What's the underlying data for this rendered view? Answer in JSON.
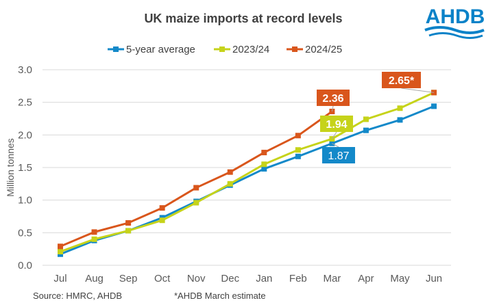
{
  "logo": {
    "text": "AHDB",
    "color": "#0a82c8"
  },
  "chart_data": {
    "type": "line",
    "title": "UK maize imports at record levels",
    "xlabel": "",
    "ylabel": "Million tonnes",
    "categories": [
      "Jul",
      "Aug",
      "Sep",
      "Oct",
      "Nov",
      "Dec",
      "Jan",
      "Feb",
      "Mar",
      "Apr",
      "May",
      "Jun"
    ],
    "ylim": [
      0,
      3.0
    ],
    "yticks": [
      "0.0",
      "0.5",
      "1.0",
      "1.5",
      "2.0",
      "2.5",
      "3.0"
    ],
    "grid": true,
    "legend_position": "top",
    "series": [
      {
        "name": "5-year average",
        "color": "#1389c9",
        "values": [
          0.17,
          0.38,
          0.53,
          0.73,
          0.98,
          1.23,
          1.48,
          1.67,
          1.87,
          2.07,
          2.23,
          2.44
        ],
        "labels": [
          {
            "index": 8,
            "text": "1.87"
          }
        ]
      },
      {
        "name": "2023/24",
        "color": "#c6d31a",
        "values": [
          0.21,
          0.4,
          0.53,
          0.69,
          0.96,
          1.25,
          1.55,
          1.77,
          1.94,
          2.24,
          2.41,
          2.65
        ],
        "labels": [
          {
            "index": 8,
            "text": "1.94"
          }
        ]
      },
      {
        "name": "2024/25",
        "color": "#d9561c",
        "values": [
          0.29,
          0.51,
          0.65,
          0.88,
          1.19,
          1.43,
          1.73,
          1.99,
          2.36,
          null,
          null,
          2.65
        ],
        "labels": [
          {
            "index": 8,
            "text": "2.36"
          },
          {
            "index": 11,
            "text": "2.65*"
          }
        ]
      }
    ]
  },
  "footer": {
    "source": "Source: HMRC, AHDB",
    "note": "*AHDB March estimate"
  }
}
